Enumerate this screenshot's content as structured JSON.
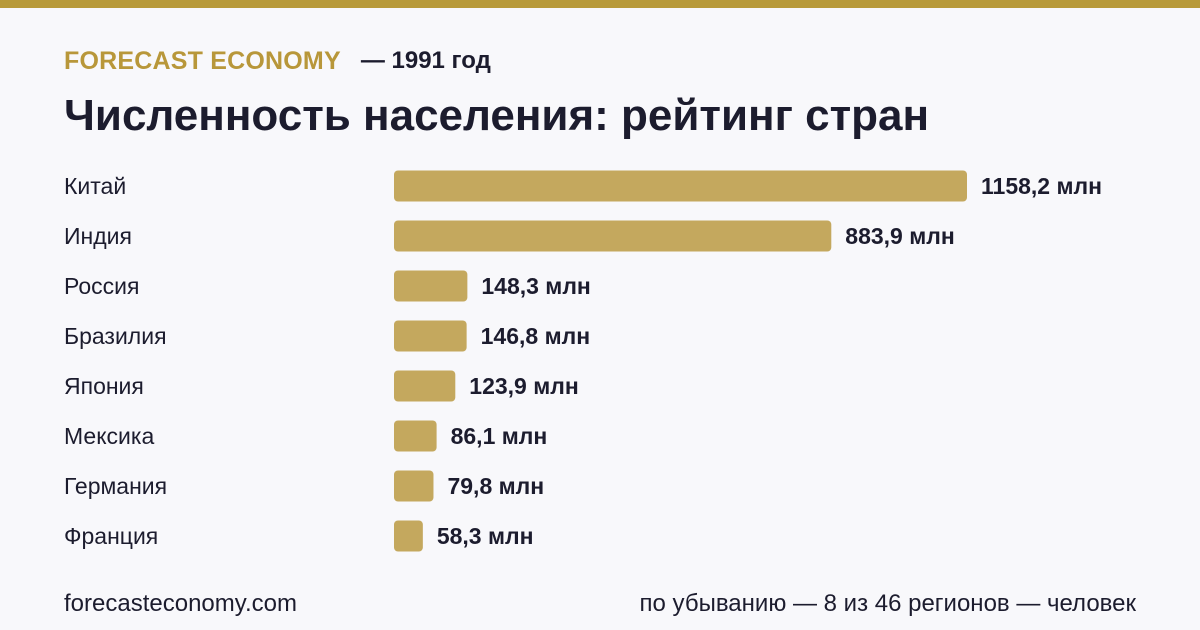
{
  "header": {
    "brand": "FORECAST ECONOMY",
    "year_label": "— 1991 год",
    "title": "Численность населения: рейтинг стран"
  },
  "footer": {
    "site": "forecasteconomy.com",
    "note": "по убыванию — 8 из 46 регионов — человек"
  },
  "colors": {
    "accent": "#b89a3a",
    "bar": "#c4a85e",
    "text": "#1c1c2e",
    "background": "#f8f8fb"
  },
  "chart_data": {
    "type": "bar",
    "orientation": "horizontal",
    "categories": [
      "Китай",
      "Индия",
      "Россия",
      "Бразилия",
      "Япония",
      "Мексика",
      "Германия",
      "Франция"
    ],
    "values": [
      1158.2,
      883.9,
      148.3,
      146.8,
      123.9,
      86.1,
      79.8,
      58.3
    ],
    "value_labels": [
      "1158,2 млн",
      "883,9 млн",
      "148,3 млн",
      "146,8 млн",
      "123,9 млн",
      "86,1 млн",
      "79,8 млн",
      "58,3 млн"
    ],
    "xlim": [
      0,
      1158.2
    ],
    "grid": false,
    "legend": "none"
  }
}
